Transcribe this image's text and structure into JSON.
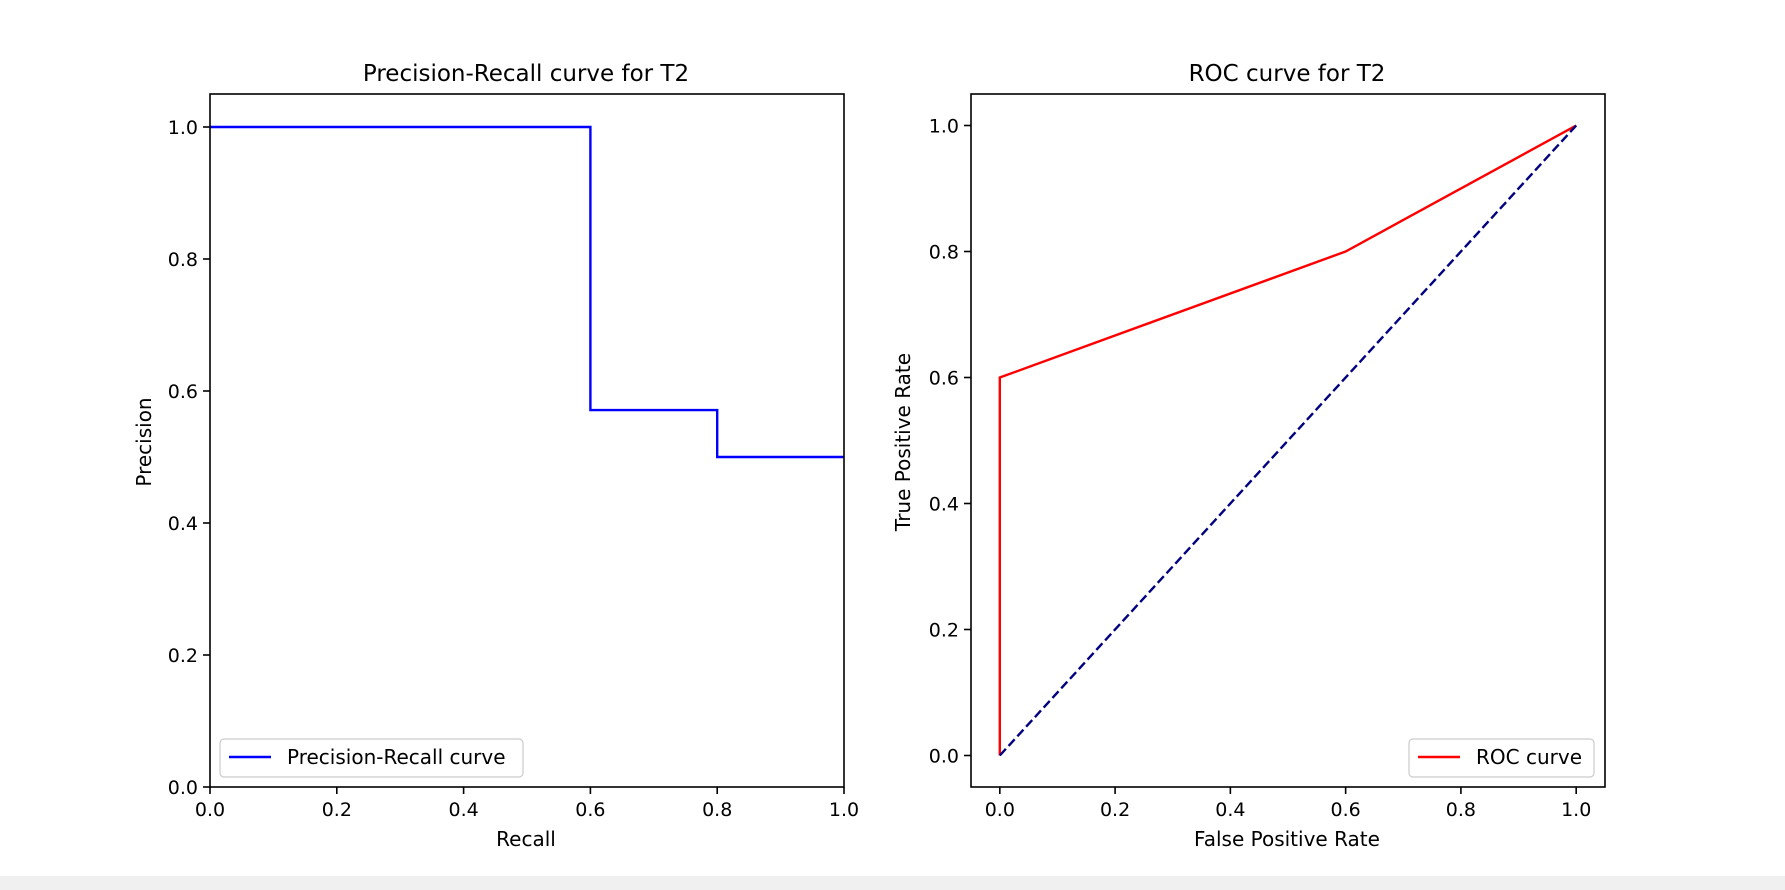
{
  "chart_data": [
    {
      "type": "line",
      "title": "Precision-Recall curve for T2",
      "xlabel": "Recall",
      "ylabel": "Precision",
      "xlim": [
        0.0,
        1.0
      ],
      "ylim": [
        0.0,
        1.05
      ],
      "xticks": [
        "0.0",
        "0.2",
        "0.4",
        "0.6",
        "0.8",
        "1.0"
      ],
      "yticks": [
        "0.0",
        "0.2",
        "0.4",
        "0.6",
        "0.8",
        "1.0"
      ],
      "grid": false,
      "legend_position": "lower-left",
      "series": [
        {
          "name": "Precision-Recall curve",
          "color": "#0000ff",
          "line_style": "solid",
          "step": "post",
          "x": [
            0.0,
            0.6,
            0.6,
            0.8,
            0.8,
            1.0
          ],
          "y": [
            1.0,
            1.0,
            0.571,
            0.571,
            0.5,
            0.5
          ]
        }
      ]
    },
    {
      "type": "line",
      "title": "ROC curve for T2",
      "xlabel": "False Positive Rate",
      "ylabel": "True Positive Rate",
      "xlim": [
        -0.05,
        1.05
      ],
      "ylim": [
        -0.05,
        1.05
      ],
      "xticks": [
        "0.0",
        "0.2",
        "0.4",
        "0.6",
        "0.8",
        "1.0"
      ],
      "yticks": [
        "0.0",
        "0.2",
        "0.4",
        "0.6",
        "0.8",
        "1.0"
      ],
      "grid": false,
      "legend_position": "lower-right",
      "series": [
        {
          "name": "ROC curve",
          "color": "#ff0000",
          "line_style": "solid",
          "x": [
            0.0,
            0.0,
            0.6,
            1.0
          ],
          "y": [
            0.0,
            0.6,
            0.8,
            1.0
          ]
        },
        {
          "color": "#000080",
          "line_style": "dashed",
          "x": [
            0.0,
            1.0
          ],
          "y": [
            0.0,
            1.0
          ]
        }
      ]
    }
  ]
}
